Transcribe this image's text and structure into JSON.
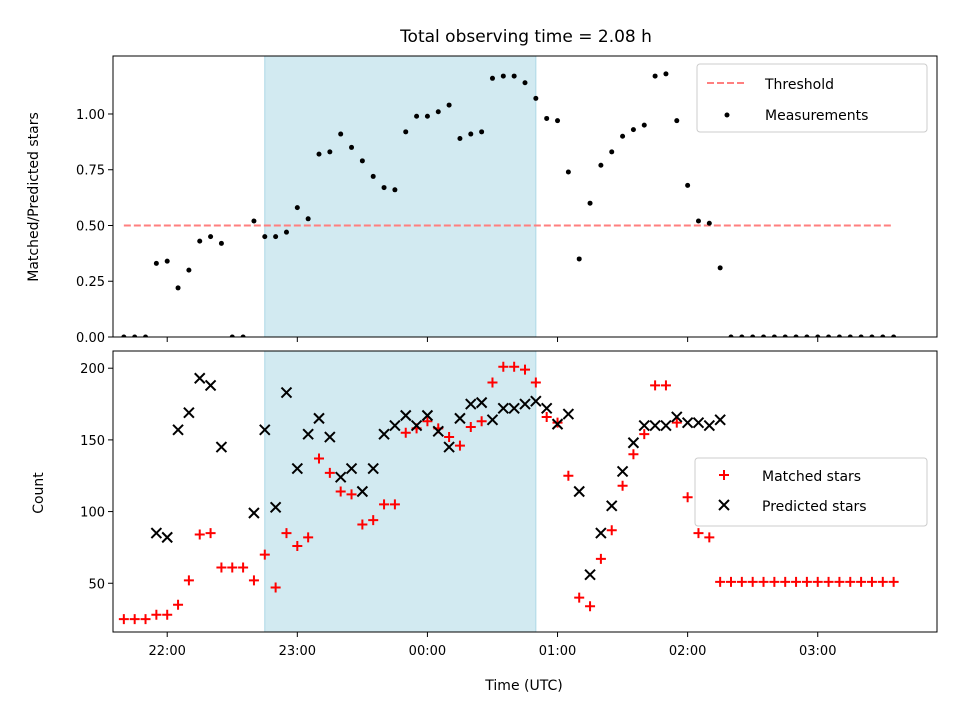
{
  "colors": {
    "shade": "#add8e6",
    "matched": "#ff0000",
    "predicted": "#000000",
    "threshold": "#ff7f7f",
    "measurement": "#000000"
  },
  "chart_data": [
    {
      "type": "scatter",
      "title": "Total observing time = 2.08 h",
      "ylabel": "Matched/Predicted stars",
      "xlabel": "",
      "xlim": [
        "21:35",
        "03:55"
      ],
      "ylim": [
        0,
        1.26
      ],
      "yticks": [
        "0.00",
        "0.25",
        "0.50",
        "0.75",
        "1.00"
      ],
      "ytick_values": [
        0,
        0.25,
        0.5,
        0.75,
        1.0
      ],
      "shaded_span": [
        "22:45",
        "00:50"
      ],
      "threshold": {
        "name": "Threshold",
        "y": 0.5,
        "x_range": [
          "21:40",
          "03:35"
        ],
        "style": "dashed"
      },
      "legend": {
        "placement": "top-right",
        "entries": [
          "Threshold",
          "Measurements"
        ]
      },
      "series": [
        {
          "name": "Measurements",
          "marker": "dot",
          "points": [
            [
              "21:40",
              0
            ],
            [
              "21:45",
              0
            ],
            [
              "21:50",
              0
            ],
            [
              "21:55",
              0.33
            ],
            [
              "22:00",
              0.34
            ],
            [
              "22:05",
              0.22
            ],
            [
              "22:10",
              0.3
            ],
            [
              "22:15",
              0.43
            ],
            [
              "22:20",
              0.45
            ],
            [
              "22:25",
              0.42
            ],
            [
              "22:30",
              0
            ],
            [
              "22:35",
              0
            ],
            [
              "22:40",
              0.52
            ],
            [
              "22:45",
              0.45
            ],
            [
              "22:50",
              0.45
            ],
            [
              "22:55",
              0.47
            ],
            [
              "23:00",
              0.58
            ],
            [
              "23:05",
              0.53
            ],
            [
              "23:10",
              0.82
            ],
            [
              "23:15",
              0.83
            ],
            [
              "23:20",
              0.91
            ],
            [
              "23:25",
              0.85
            ],
            [
              "23:30",
              0.79
            ],
            [
              "23:35",
              0.72
            ],
            [
              "23:40",
              0.67
            ],
            [
              "23:45",
              0.66
            ],
            [
              "23:50",
              0.92
            ],
            [
              "23:55",
              0.99
            ],
            [
              "00:00",
              0.99
            ],
            [
              "00:05",
              1.01
            ],
            [
              "00:10",
              1.04
            ],
            [
              "00:15",
              0.89
            ],
            [
              "00:20",
              0.91
            ],
            [
              "00:25",
              0.92
            ],
            [
              "00:30",
              1.16
            ],
            [
              "00:35",
              1.17
            ],
            [
              "00:40",
              1.17
            ],
            [
              "00:45",
              1.14
            ],
            [
              "00:50",
              1.07
            ],
            [
              "00:55",
              0.98
            ],
            [
              "01:00",
              0.97
            ],
            [
              "01:05",
              0.74
            ],
            [
              "01:10",
              0.35
            ],
            [
              "01:15",
              0.6
            ],
            [
              "01:20",
              0.77
            ],
            [
              "01:25",
              0.83
            ],
            [
              "01:30",
              0.9
            ],
            [
              "01:35",
              0.93
            ],
            [
              "01:40",
              0.95
            ],
            [
              "01:45",
              1.17
            ],
            [
              "01:50",
              1.18
            ],
            [
              "01:55",
              0.97
            ],
            [
              "02:00",
              0.68
            ],
            [
              "02:05",
              0.52
            ],
            [
              "02:10",
              0.51
            ],
            [
              "02:15",
              0.31
            ],
            [
              "02:20",
              0
            ],
            [
              "02:25",
              0
            ],
            [
              "02:30",
              0
            ],
            [
              "02:35",
              0
            ],
            [
              "02:40",
              0
            ],
            [
              "02:45",
              0
            ],
            [
              "02:50",
              0
            ],
            [
              "02:55",
              0
            ],
            [
              "03:00",
              0
            ],
            [
              "03:05",
              0
            ],
            [
              "03:10",
              0
            ],
            [
              "03:15",
              0
            ],
            [
              "03:20",
              0
            ],
            [
              "03:25",
              0
            ],
            [
              "03:30",
              0
            ],
            [
              "03:35",
              0
            ]
          ]
        }
      ]
    },
    {
      "type": "scatter",
      "title": "",
      "ylabel": "Count",
      "xlabel": "Time (UTC)",
      "xlim": [
        "21:35",
        "03:55"
      ],
      "ylim": [
        16,
        212
      ],
      "yticks": [
        "50",
        "100",
        "150",
        "200"
      ],
      "ytick_values": [
        50,
        100,
        150,
        200
      ],
      "xticks": [
        "22:00",
        "23:00",
        "00:00",
        "01:00",
        "02:00",
        "03:00"
      ],
      "shaded_span": [
        "22:45",
        "00:50"
      ],
      "legend": {
        "placement": "center-right",
        "entries": [
          "Matched stars",
          "Predicted stars"
        ]
      },
      "series": [
        {
          "name": "Matched stars",
          "marker": "plus",
          "points": [
            [
              "21:40",
              25
            ],
            [
              "21:45",
              25
            ],
            [
              "21:50",
              25
            ],
            [
              "21:55",
              28
            ],
            [
              "22:00",
              28
            ],
            [
              "22:05",
              35
            ],
            [
              "22:10",
              52
            ],
            [
              "22:15",
              84
            ],
            [
              "22:20",
              85
            ],
            [
              "22:25",
              61
            ],
            [
              "22:30",
              61
            ],
            [
              "22:35",
              61
            ],
            [
              "22:40",
              52
            ],
            [
              "22:45",
              70
            ],
            [
              "22:50",
              47
            ],
            [
              "22:55",
              85
            ],
            [
              "23:00",
              76
            ],
            [
              "23:05",
              82
            ],
            [
              "23:10",
              137
            ],
            [
              "23:15",
              127
            ],
            [
              "23:20",
              114
            ],
            [
              "23:25",
              112
            ],
            [
              "23:30",
              91
            ],
            [
              "23:35",
              94
            ],
            [
              "23:40",
              105
            ],
            [
              "23:45",
              105
            ],
            [
              "23:50",
              155
            ],
            [
              "23:55",
              158
            ],
            [
              "00:00",
              163
            ],
            [
              "00:05",
              158
            ],
            [
              "00:10",
              152
            ],
            [
              "00:15",
              146
            ],
            [
              "00:20",
              159
            ],
            [
              "00:25",
              163
            ],
            [
              "00:30",
              190
            ],
            [
              "00:35",
              201
            ],
            [
              "00:40",
              201
            ],
            [
              "00:45",
              199
            ],
            [
              "00:50",
              190
            ],
            [
              "00:55",
              166
            ],
            [
              "01:00",
              162
            ],
            [
              "01:05",
              125
            ],
            [
              "01:10",
              40
            ],
            [
              "01:15",
              34
            ],
            [
              "01:20",
              67
            ],
            [
              "01:25",
              87
            ],
            [
              "01:30",
              118
            ],
            [
              "01:35",
              140
            ],
            [
              "01:40",
              154
            ],
            [
              "01:45",
              188
            ],
            [
              "01:50",
              188
            ],
            [
              "01:55",
              162
            ],
            [
              "02:00",
              110
            ],
            [
              "02:05",
              85
            ],
            [
              "02:10",
              82
            ],
            [
              "02:15",
              51
            ],
            [
              "02:20",
              51
            ],
            [
              "02:25",
              51
            ],
            [
              "02:30",
              51
            ],
            [
              "02:35",
              51
            ],
            [
              "02:40",
              51
            ],
            [
              "02:45",
              51
            ],
            [
              "02:50",
              51
            ],
            [
              "02:55",
              51
            ],
            [
              "03:00",
              51
            ],
            [
              "03:05",
              51
            ],
            [
              "03:10",
              51
            ],
            [
              "03:15",
              51
            ],
            [
              "03:20",
              51
            ],
            [
              "03:25",
              51
            ],
            [
              "03:30",
              51
            ],
            [
              "03:35",
              51
            ]
          ]
        },
        {
          "name": "Predicted stars",
          "marker": "x",
          "points": [
            [
              "21:55",
              85
            ],
            [
              "22:00",
              82
            ],
            [
              "22:05",
              157
            ],
            [
              "22:10",
              169
            ],
            [
              "22:15",
              193
            ],
            [
              "22:20",
              188
            ],
            [
              "22:25",
              145
            ],
            [
              "22:40",
              99
            ],
            [
              "22:45",
              157
            ],
            [
              "22:50",
              103
            ],
            [
              "22:55",
              183
            ],
            [
              "23:00",
              130
            ],
            [
              "23:05",
              154
            ],
            [
              "23:10",
              165
            ],
            [
              "23:15",
              152
            ],
            [
              "23:20",
              124
            ],
            [
              "23:25",
              130
            ],
            [
              "23:30",
              114
            ],
            [
              "23:35",
              130
            ],
            [
              "23:40",
              154
            ],
            [
              "23:45",
              160
            ],
            [
              "23:50",
              167
            ],
            [
              "23:55",
              160
            ],
            [
              "00:00",
              167
            ],
            [
              "00:05",
              156
            ],
            [
              "00:10",
              145
            ],
            [
              "00:15",
              165
            ],
            [
              "00:20",
              175
            ],
            [
              "00:25",
              176
            ],
            [
              "00:30",
              164
            ],
            [
              "00:35",
              172
            ],
            [
              "00:40",
              172
            ],
            [
              "00:45",
              175
            ],
            [
              "00:50",
              177
            ],
            [
              "00:55",
              172
            ],
            [
              "01:00",
              161
            ],
            [
              "01:05",
              168
            ],
            [
              "01:10",
              114
            ],
            [
              "01:15",
              56
            ],
            [
              "01:20",
              85
            ],
            [
              "01:25",
              104
            ],
            [
              "01:30",
              128
            ],
            [
              "01:35",
              148
            ],
            [
              "01:40",
              160
            ],
            [
              "01:45",
              160
            ],
            [
              "01:50",
              160
            ],
            [
              "01:55",
              166
            ],
            [
              "02:00",
              162
            ],
            [
              "02:05",
              162
            ],
            [
              "02:10",
              160
            ],
            [
              "02:15",
              164
            ]
          ]
        }
      ]
    }
  ]
}
